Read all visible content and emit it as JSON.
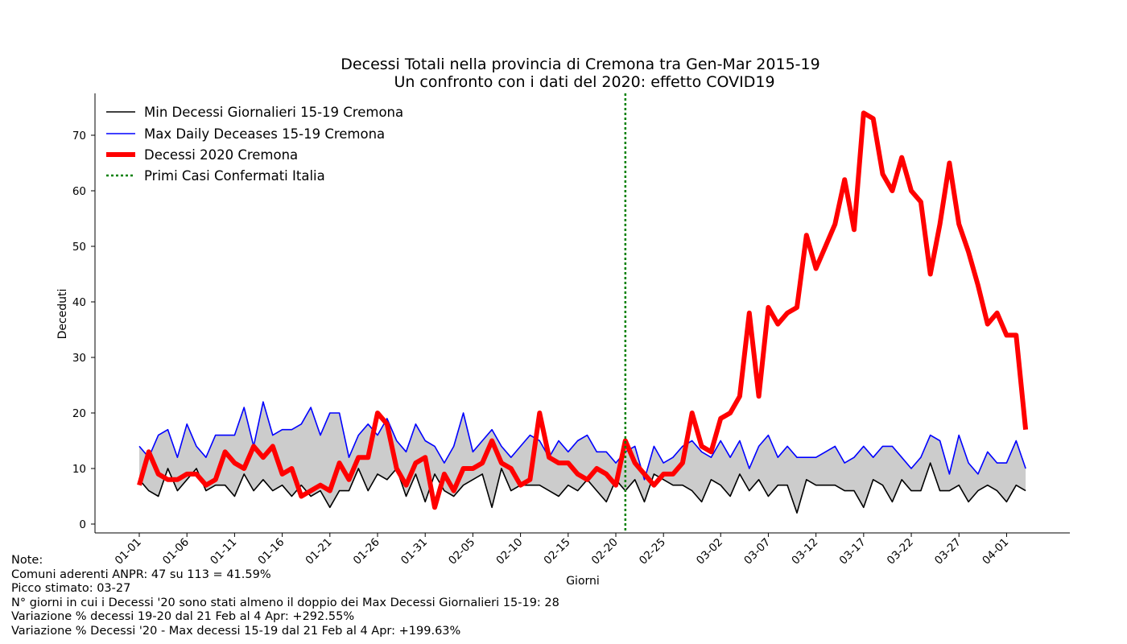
{
  "chart_data": {
    "type": "line",
    "title": "Decessi Totali nella provincia di Cremona tra Gen-Mar 2015-19",
    "subtitle": "Un confronto con i dati del 2020: effetto COVID19",
    "xlabel": "Giorni",
    "ylabel": "Deceduti",
    "ylim": [
      -1.5,
      78
    ],
    "yticks": [
      0,
      10,
      20,
      30,
      40,
      50,
      60,
      70
    ],
    "x": [
      "01-01",
      "01-02",
      "01-03",
      "01-04",
      "01-05",
      "01-06",
      "01-07",
      "01-08",
      "01-09",
      "01-10",
      "01-11",
      "01-12",
      "01-13",
      "01-14",
      "01-15",
      "01-16",
      "01-17",
      "01-18",
      "01-19",
      "01-20",
      "01-21",
      "01-22",
      "01-23",
      "01-24",
      "01-25",
      "01-26",
      "01-27",
      "01-28",
      "01-29",
      "01-30",
      "01-31",
      "02-01",
      "02-02",
      "02-03",
      "02-04",
      "02-05",
      "02-06",
      "02-07",
      "02-08",
      "02-09",
      "02-10",
      "02-11",
      "02-12",
      "02-13",
      "02-14",
      "02-15",
      "02-16",
      "02-17",
      "02-18",
      "02-19",
      "02-20",
      "02-21",
      "02-22",
      "02-23",
      "02-24",
      "02-25",
      "02-26",
      "02-27",
      "02-28",
      "02-29",
      "03-01",
      "03-02",
      "03-03",
      "03-04",
      "03-05",
      "03-06",
      "03-07",
      "03-08",
      "03-09",
      "03-10",
      "03-11",
      "03-12",
      "03-13",
      "03-14",
      "03-15",
      "03-16",
      "03-17",
      "03-18",
      "03-19",
      "03-20",
      "03-21",
      "03-22",
      "03-23",
      "03-24",
      "03-25",
      "03-26",
      "03-27",
      "03-28",
      "03-29",
      "03-30",
      "03-31",
      "04-01",
      "04-02",
      "04-03",
      "04-04"
    ],
    "xticks": [
      "01-01",
      "01-06",
      "01-11",
      "01-16",
      "01-21",
      "01-26",
      "01-31",
      "02-05",
      "02-10",
      "02-15",
      "02-20",
      "02-25",
      "03-02",
      "03-07",
      "03-12",
      "03-17",
      "03-22",
      "03-27",
      "04-01"
    ],
    "series": [
      {
        "name": "Min Decessi Giornalieri 15-19 Cremona",
        "color": "#000000",
        "values": [
          8,
          6,
          5,
          10,
          6,
          8,
          10,
          6,
          7,
          7,
          5,
          9,
          6,
          8,
          6,
          7,
          5,
          7,
          5,
          6,
          3,
          6,
          6,
          10,
          6,
          9,
          8,
          10,
          5,
          9,
          4,
          9,
          6,
          5,
          7,
          8,
          9,
          3,
          10,
          6,
          7,
          7,
          7,
          6,
          5,
          7,
          6,
          8,
          6,
          4,
          8,
          6,
          8,
          4,
          9,
          8,
          7,
          7,
          6,
          4,
          8,
          7,
          5,
          9,
          6,
          8,
          5,
          7,
          7,
          2,
          8,
          7,
          7,
          7,
          6,
          6,
          3,
          8,
          7,
          4,
          8,
          6,
          6,
          11,
          6,
          6,
          7,
          4,
          6,
          7,
          6,
          4,
          7,
          6,
          null
        ]
      },
      {
        "name": "Max Daily Deceases 15-19 Cremona",
        "color": "#0000ff",
        "values": [
          14,
          12,
          16,
          17,
          12,
          18,
          14,
          12,
          16,
          16,
          16,
          21,
          14,
          22,
          16,
          17,
          17,
          18,
          21,
          16,
          20,
          20,
          12,
          16,
          18,
          16,
          19,
          15,
          13,
          18,
          15,
          14,
          11,
          14,
          20,
          13,
          15,
          17,
          14,
          12,
          14,
          16,
          15,
          12,
          15,
          13,
          15,
          16,
          13,
          13,
          11,
          13,
          14,
          8,
          14,
          11,
          12,
          14,
          15,
          13,
          12,
          15,
          12,
          15,
          10,
          14,
          16,
          12,
          14,
          12,
          12,
          12,
          13,
          14,
          11,
          12,
          14,
          12,
          14,
          14,
          12,
          10,
          12,
          16,
          15,
          9,
          16,
          11,
          9,
          13,
          11,
          11,
          15,
          10,
          null
        ]
      },
      {
        "name": "Decessi 2020 Cremona",
        "color": "#ff0000",
        "values": [
          7,
          13,
          9,
          8,
          8,
          9,
          9,
          7,
          8,
          13,
          11,
          10,
          14,
          12,
          14,
          9,
          10,
          5,
          6,
          7,
          6,
          11,
          8,
          12,
          12,
          20,
          18,
          10,
          7,
          11,
          12,
          3,
          9,
          6,
          10,
          10,
          11,
          15,
          11,
          10,
          7,
          8,
          20,
          12,
          11,
          11,
          9,
          8,
          10,
          9,
          7,
          15,
          11,
          9,
          7,
          9,
          9,
          11,
          20,
          14,
          13,
          19,
          20,
          23,
          38,
          23,
          39,
          36,
          38,
          39,
          52,
          46,
          50,
          54,
          62,
          53,
          74,
          73,
          63,
          60,
          66,
          60,
          58,
          45,
          54,
          65,
          54,
          49,
          43,
          36,
          38,
          34,
          34,
          17,
          null
        ]
      }
    ],
    "vline": {
      "name": "Primi Casi Confermati Italia",
      "x": "02-21",
      "color": "#008000"
    },
    "fill_between": {
      "from": "Min Decessi Giornalieri 15-19 Cremona",
      "to": "Max Daily Deceases 15-19 Cremona",
      "color": "#cccccc"
    },
    "legend_position": "top-left"
  },
  "notes": [
    "Note:",
    "Comuni aderenti ANPR: 47 su 113 = 41.59%",
    "Picco stimato: 03-27",
    "N° giorni in cui i Decessi '20 sono stati almeno il doppio dei Max Decessi Giornalieri 15-19: 28",
    "Variazione % decessi 19-20 dal 21 Feb al 4 Apr: +292.55%",
    "Variazione % Decessi '20 - Max decessi 15-19 dal 21 Feb al 4 Apr: +199.63%"
  ]
}
